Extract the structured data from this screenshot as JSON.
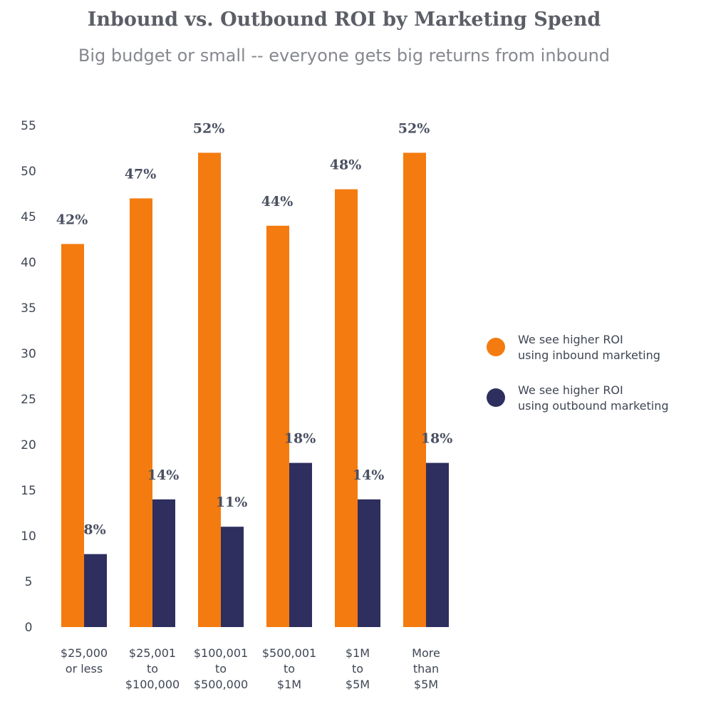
{
  "chart_data": {
    "type": "bar",
    "title": "Inbound vs. Outbound ROI by Marketing Spend",
    "subtitle": "Big budget or small -- everyone gets big returns from inbound",
    "categories": [
      "$25,000\nor less",
      "$25,001\nto\n$100,000",
      "$100,001\nto\n$500,000",
      "$500,001\nto\n$1M",
      "$1M\nto\n$5M",
      "More\nthan\n$5M"
    ],
    "series": [
      {
        "name": "We see higher ROI\nusing inbound marketing",
        "color": "#f47b0f",
        "values": [
          42,
          47,
          52,
          44,
          48,
          52
        ],
        "labels": [
          "42%",
          "47%",
          "52%",
          "44%",
          "48%",
          "52%"
        ]
      },
      {
        "name": "We see higher ROI\nusing outbound marketing",
        "color": "#2e2f5e",
        "values": [
          8,
          14,
          11,
          18,
          14,
          18
        ],
        "labels": [
          "8%",
          "14%",
          "11%",
          "18%",
          "14%",
          "18%"
        ]
      }
    ],
    "ylim": [
      0,
      55
    ],
    "yticks": [
      "0",
      "5",
      "10",
      "15",
      "20",
      "25",
      "30",
      "35",
      "40",
      "45",
      "50",
      "55"
    ],
    "grid": false,
    "legend_position": "right"
  }
}
